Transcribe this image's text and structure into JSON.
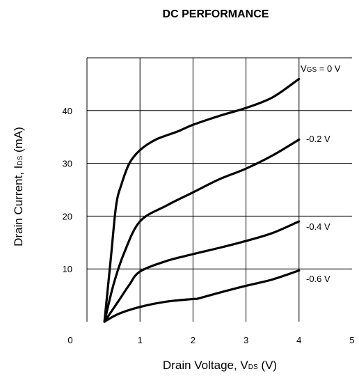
{
  "chart_data": {
    "type": "line",
    "title": "DC PERFORMANCE",
    "xlabel": {
      "main": "Drain Voltage, V",
      "sub": "DS",
      "unit": " (V)"
    },
    "ylabel": {
      "main": "Drain Current, I",
      "sub": "DS",
      "unit": " (mA)"
    },
    "xlim": [
      0,
      5
    ],
    "ylim": [
      0,
      50
    ],
    "x_ticks": [
      "0",
      "1",
      "2",
      "3",
      "4",
      "5"
    ],
    "y_ticks": [
      "10",
      "20",
      "30",
      "40"
    ],
    "grid": true,
    "series": [
      {
        "name": "VGS = 0 V",
        "label": {
          "pre": "V",
          "sub": "GS",
          "post": " = 0 V"
        },
        "points": [
          [
            0.33,
            0
          ],
          [
            0.45,
            12
          ],
          [
            0.55,
            22
          ],
          [
            0.65,
            26
          ],
          [
            0.8,
            30
          ],
          [
            1.0,
            32.5
          ],
          [
            1.3,
            34.5
          ],
          [
            1.7,
            36
          ],
          [
            2.0,
            37.3
          ],
          [
            2.5,
            39
          ],
          [
            3.0,
            40.5
          ],
          [
            3.5,
            42.5
          ],
          [
            4.0,
            46
          ]
        ]
      },
      {
        "name": "-0.2 V",
        "label": {
          "pre": "-0.2 V",
          "sub": "",
          "post": ""
        },
        "points": [
          [
            0.33,
            0
          ],
          [
            0.5,
            7
          ],
          [
            0.7,
            13
          ],
          [
            1.0,
            19
          ],
          [
            1.5,
            22
          ],
          [
            2.0,
            24.5
          ],
          [
            2.5,
            27
          ],
          [
            3.0,
            29
          ],
          [
            3.5,
            31.5
          ],
          [
            4.0,
            34.5
          ]
        ]
      },
      {
        "name": "-0.4 V",
        "label": {
          "pre": "-0.4 V",
          "sub": "",
          "post": ""
        },
        "points": [
          [
            0.33,
            0
          ],
          [
            0.6,
            4
          ],
          [
            0.8,
            7
          ],
          [
            1.0,
            9.5
          ],
          [
            1.5,
            11.5
          ],
          [
            2.0,
            12.8
          ],
          [
            2.5,
            14
          ],
          [
            3.0,
            15.3
          ],
          [
            3.5,
            16.8
          ],
          [
            4.0,
            19
          ]
        ]
      },
      {
        "name": "-0.6 V",
        "label": {
          "pre": "-0.6 V",
          "sub": "",
          "post": ""
        },
        "points": [
          [
            0.33,
            0
          ],
          [
            0.6,
            1.5
          ],
          [
            1.0,
            2.8
          ],
          [
            1.5,
            3.8
          ],
          [
            2.0,
            4.3
          ],
          [
            2.1,
            4.4
          ],
          [
            2.5,
            5.5
          ],
          [
            3.0,
            6.8
          ],
          [
            3.5,
            8
          ],
          [
            4.0,
            9.7
          ]
        ]
      }
    ]
  }
}
